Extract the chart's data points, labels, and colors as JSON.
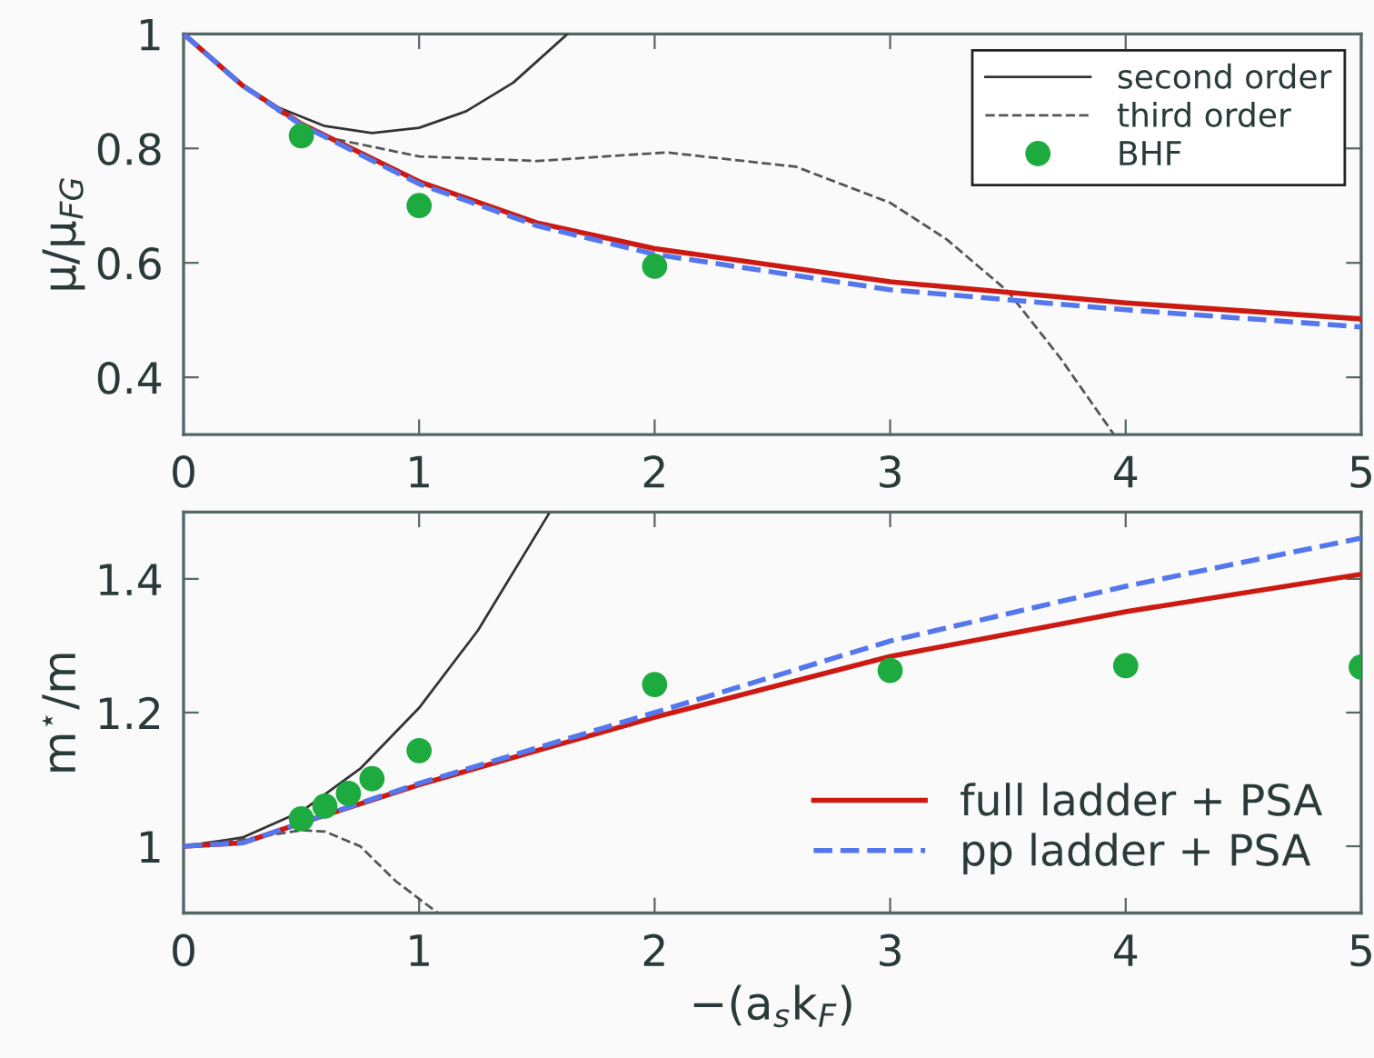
{
  "chart_data": [
    {
      "type": "line",
      "ylabel": "μ/μ$_{FG}$",
      "xlim": [
        0,
        5
      ],
      "ylim": [
        0.3,
        1
      ],
      "xticks": [
        0,
        1,
        2,
        3,
        4,
        5
      ],
      "yticks": [
        0.4,
        0.6,
        0.8,
        1
      ],
      "legend": "top right",
      "grid": false,
      "series": [
        {
          "name": "second order",
          "color": "#333333",
          "line_style": "solid",
          "x": [
            0,
            0.2,
            0.4,
            0.6,
            0.8,
            1.0,
            1.2,
            1.4,
            1.63
          ],
          "values": [
            1,
            0.925,
            0.872,
            0.839,
            0.827,
            0.836,
            0.865,
            0.915,
            1.0
          ]
        },
        {
          "name": "third order",
          "color": "#555555",
          "line_style": "dashed",
          "x": [
            0,
            0.25,
            0.4,
            0.6,
            1.0,
            1.5,
            2.05,
            2.6,
            3.0,
            3.24,
            3.5,
            3.72,
            3.95
          ],
          "values": [
            1,
            0.91,
            0.865,
            0.82,
            0.786,
            0.778,
            0.793,
            0.768,
            0.705,
            0.641,
            0.55,
            0.435,
            0.3
          ]
        },
        {
          "name": "BHF",
          "type": "scatter",
          "marker": "circle",
          "color": "#1daa3f",
          "x": [
            0.5,
            1,
            2
          ],
          "values": [
            0.822,
            0.7,
            0.594
          ]
        },
        {
          "color": "#cc1a12",
          "line_style": "solid",
          "x": [
            0,
            0.25,
            0.5,
            1,
            1.5,
            2,
            3,
            4,
            5
          ],
          "values": [
            1,
            0.91,
            0.843,
            0.742,
            0.67,
            0.625,
            0.567,
            0.53,
            0.502
          ]
        },
        {
          "color": "#5577ee",
          "line_style": "dashed",
          "x": [
            0,
            0.25,
            0.5,
            1,
            1.5,
            2,
            3,
            4,
            5
          ],
          "values": [
            1,
            0.91,
            0.841,
            0.738,
            0.665,
            0.615,
            0.553,
            0.518,
            0.488
          ]
        }
      ]
    },
    {
      "type": "line",
      "xlabel": "−(a$_{s}$k$_{F}$)",
      "ylabel": "m$^{⋆}$/m",
      "xlim": [
        0,
        5
      ],
      "ylim": [
        0.9,
        1.5
      ],
      "xticks": [
        0,
        1,
        2,
        3,
        4,
        5
      ],
      "yticks": [
        1,
        1.2,
        1.4
      ],
      "legend": "bottom right",
      "grid": false,
      "series": [
        {
          "color": "#333333",
          "line_style": "solid",
          "x": [
            0,
            0.25,
            0.5,
            0.75,
            1,
            1.25,
            1.55
          ],
          "values": [
            1,
            1.013,
            1.052,
            1.116,
            1.207,
            1.323,
            1.497
          ]
        },
        {
          "color": "#555555",
          "line_style": "dashed",
          "x": [
            0,
            0.25,
            0.5,
            0.6,
            0.75,
            0.9,
            1.08
          ],
          "values": [
            1,
            1.01,
            1.024,
            1.022,
            1.0,
            0.948,
            0.9
          ]
        },
        {
          "type": "scatter",
          "marker": "circle",
          "color": "#1daa3f",
          "x": [
            0.5,
            0.6,
            0.7,
            0.8,
            1,
            2,
            3,
            4,
            5
          ],
          "values": [
            1.041,
            1.06,
            1.079,
            1.101,
            1.143,
            1.242,
            1.263,
            1.27,
            1.268
          ]
        },
        {
          "name": "full ladder + PSA",
          "color": "#cc1a12",
          "line_style": "solid",
          "x": [
            0,
            0.25,
            0.5,
            1,
            1.5,
            2,
            3,
            4,
            5
          ],
          "values": [
            1,
            1.005,
            1.035,
            1.092,
            1.143,
            1.193,
            1.284,
            1.351,
            1.407
          ]
        },
        {
          "name": "pp ladder + PSA",
          "color": "#5577ee",
          "line_style": "dashed",
          "x": [
            0,
            0.25,
            0.5,
            1,
            1.5,
            2,
            3,
            4,
            5
          ],
          "values": [
            1,
            1.005,
            1.035,
            1.094,
            1.147,
            1.2,
            1.307,
            1.389,
            1.461
          ]
        }
      ]
    }
  ]
}
